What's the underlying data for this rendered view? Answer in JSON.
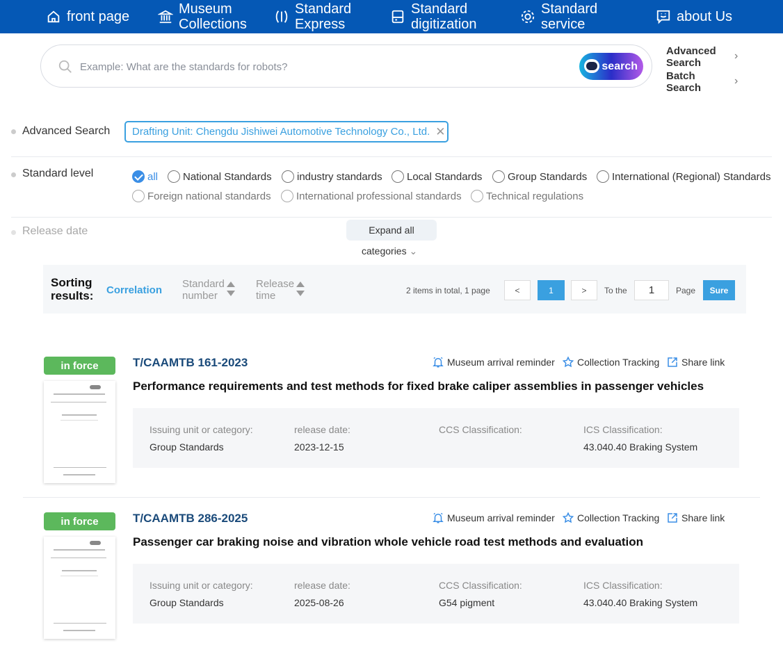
{
  "nav": [
    {
      "label": "front page",
      "icon": "home-icon"
    },
    {
      "label": "Museum Collections",
      "icon": "museum-icon"
    },
    {
      "label": "Standard Express",
      "icon": "express-icon"
    },
    {
      "label": "Standard digitization",
      "icon": "digitization-icon"
    },
    {
      "label": "Standard service",
      "icon": "service-icon"
    },
    {
      "label": "about Us",
      "icon": "chat-smile-icon"
    }
  ],
  "search": {
    "placeholder": "Example: What are the standards for robots?",
    "button": "search",
    "advanced": "Advanced Search",
    "batch": "Batch Search"
  },
  "filters": {
    "advanced_label": "Advanced Search",
    "tag": "Drafting Unit: Chengdu Jishiwei Automotive Technology Co., Ltd.",
    "level_label": "Standard level",
    "levels": [
      "all",
      "National Standards",
      "industry standards",
      "Local Standards",
      "Group Standards",
      "International (Regional) Standards",
      "Foreign national standards",
      "International professional standards",
      "Technical regulations"
    ],
    "selected_level": "all",
    "release_label": "Release date",
    "expand": "Expand all",
    "categories": "categories"
  },
  "sorting": {
    "label": "Sorting results:",
    "options": [
      "Correlation",
      "Standard number",
      "Release time"
    ],
    "active": "Correlation",
    "total": "2 items in total, 1 page",
    "prev": "<",
    "next": ">",
    "current_page": "1",
    "to_label": "To the",
    "page_input": "1",
    "page_label": "Page",
    "sure": "Sure"
  },
  "accent": "#3aa0e0",
  "results": [
    {
      "status": "in force",
      "code": "T/CAAMTB 161-2023",
      "title": "Performance requirements and test methods for fixed brake caliper assemblies in passenger vehicles",
      "actions": [
        "Museum arrival reminder",
        "Collection Tracking",
        "Share link"
      ],
      "fields": [
        {
          "k": "Issuing unit or category:",
          "v": "Group Standards"
        },
        {
          "k": "release date:",
          "v": "2023-12-15"
        },
        {
          "k": "CCS Classification:",
          "v": ""
        },
        {
          "k": "ICS Classification:",
          "v": "43.040.40 Braking System"
        }
      ]
    },
    {
      "status": "in force",
      "code": "T/CAAMTB 286-2025",
      "title": "Passenger car braking noise and vibration whole vehicle road test methods and evaluation",
      "actions": [
        "Museum arrival reminder",
        "Collection Tracking",
        "Share link"
      ],
      "fields": [
        {
          "k": "Issuing unit or category:",
          "v": "Group Standards"
        },
        {
          "k": "release date:",
          "v": "2025-08-26"
        },
        {
          "k": "CCS Classification:",
          "v": "G54 pigment"
        },
        {
          "k": "ICS Classification:",
          "v": "43.040.40 Braking System"
        }
      ]
    }
  ]
}
